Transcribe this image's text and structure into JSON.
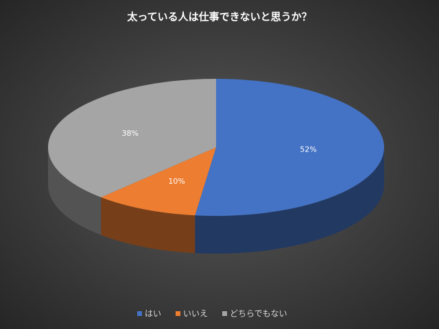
{
  "chart_data": {
    "type": "pie3d",
    "title": "太っている人は仕事できないと思うか？",
    "categories": [
      "はい",
      "いいえ",
      "どちらでもない"
    ],
    "values": [
      52,
      10,
      38
    ],
    "value_labels": [
      "52%",
      "10%",
      "38%"
    ],
    "colors": [
      "#4472c4",
      "#ed7d31",
      "#a5a5a5"
    ],
    "legend": "bottom"
  }
}
